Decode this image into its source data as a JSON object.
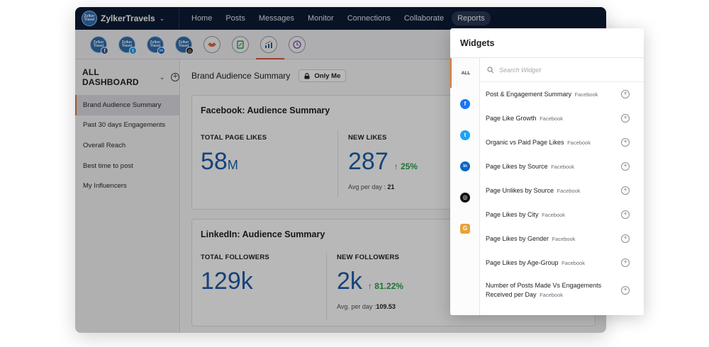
{
  "app": {
    "brand_name": "ZylkerTravels",
    "brand_logo_text": "Zylker Travel",
    "nav": [
      "Home",
      "Posts",
      "Messages",
      "Monitor",
      "Connections",
      "Collaborate",
      "Reports"
    ],
    "active_nav": "Reports"
  },
  "accounts": [
    {
      "label": "Zylker Travel",
      "network": "facebook",
      "badge": "f",
      "badge_color": "#3b5998"
    },
    {
      "label": "Zylker Travel",
      "network": "twitter",
      "badge": "t",
      "badge_color": "#1da1f2"
    },
    {
      "label": "Zylker Travel",
      "network": "linkedin",
      "badge": "in",
      "badge_color": "#0a66c2"
    },
    {
      "label": "Zylker Travel",
      "network": "instagram",
      "badge": "◎",
      "badge_color": "#222222"
    }
  ],
  "toolbar_icons": [
    "handshake-icon",
    "document-icon",
    "analytics-chart-icon",
    "clock-icon"
  ],
  "sidebar": {
    "title": "ALL DASHBOARD",
    "items": [
      "Brand Audience Summary",
      "Past 30 days Engagements",
      "Overall Reach",
      "Best time to post",
      "My Influencers"
    ]
  },
  "main": {
    "title": "Brand Audience Summary",
    "visibility_label": "Only Me",
    "cards": [
      {
        "title": "Facebook: Audience Summary",
        "left": {
          "label": "TOTAL PAGE LIKES",
          "value": "58",
          "unit": "M"
        },
        "right": {
          "label": "NEW LIKES",
          "value": "287",
          "change": "25%",
          "sub_label": "Avg per day :",
          "sub_value": "21"
        }
      },
      {
        "title": "LinkedIn: Audience Summary",
        "left": {
          "label": "TOTAL FOLLOWERS",
          "value": "129k",
          "unit": ""
        },
        "right": {
          "label": "NEW FOLLOWERS",
          "value": "2k",
          "change": "81.22%",
          "sub_label": "Avg. per day :",
          "sub_value": "109.53"
        }
      }
    ]
  },
  "widgets_panel": {
    "title": "Widgets",
    "search_placeholder": "Search Widget",
    "rail": [
      {
        "label": "ALL"
      },
      {
        "label": "f",
        "color": "#1877f2"
      },
      {
        "label": "t",
        "color": "#1da1f2"
      },
      {
        "label": "in",
        "color": "#0a66c2"
      },
      {
        "label": "◎",
        "color": "#111111"
      },
      {
        "label": "G",
        "color": "#e8a33a"
      }
    ],
    "items": [
      {
        "name": "Post & Engagement Summary",
        "source": "Facebook"
      },
      {
        "name": "Page Like Growth",
        "source": "Facebook"
      },
      {
        "name": "Organic vs Paid Page Likes",
        "source": "Facebook"
      },
      {
        "name": "Page Likes by Source",
        "source": "Facebook"
      },
      {
        "name": "Page Unlikes by Source",
        "source": "Facebook"
      },
      {
        "name": "Page Likes by City",
        "source": "Facebook"
      },
      {
        "name": "Page Likes by Gender",
        "source": "Facebook"
      },
      {
        "name": "Page Likes by Age-Group",
        "source": "Facebook"
      },
      {
        "name": "Number of Posts Made Vs Engagements Received per Day",
        "source": "Facebook"
      }
    ]
  },
  "colors": {
    "topbar": "#0d1b35",
    "accent": "#e07a3a",
    "metric_blue": "#1e5ea8",
    "positive_green": "#2aa04a"
  }
}
